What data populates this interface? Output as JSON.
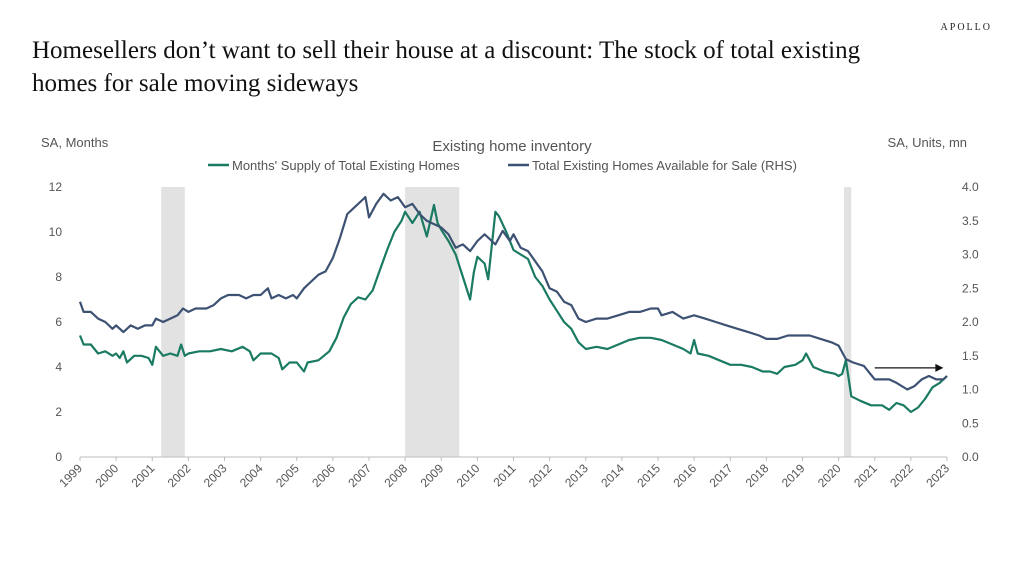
{
  "brand": "APOLLO",
  "headline": "Homesellers don’t want to sell their house at a discount: The stock of  total existing homes for sale moving sideways",
  "colors": {
    "supply": "#1a7a62",
    "inventory": "#3d5273",
    "recession": "#e2e2e2",
    "axis": "#bdbdbd"
  },
  "chart_data": {
    "type": "line",
    "title": "Existing home inventory",
    "ylabel_left": "SA, Months",
    "ylabel_right": "SA, Units, mn",
    "legend_position": "top",
    "grid": false,
    "xlim": [
      1999,
      2023
    ],
    "ylim_left": [
      0,
      12
    ],
    "ylim_right": [
      0,
      4
    ],
    "x_ticks": [
      "1999",
      "2000",
      "2001",
      "2002",
      "2003",
      "2004",
      "2005",
      "2006",
      "2007",
      "2008",
      "2009",
      "2010",
      "2011",
      "2012",
      "2013",
      "2014",
      "2015",
      "2016",
      "2017",
      "2018",
      "2019",
      "2020",
      "2021",
      "2022",
      "2023"
    ],
    "y_ticks_left": [
      "0",
      "2",
      "4",
      "6",
      "8",
      "10",
      "12"
    ],
    "y_ticks_right": [
      "0.0",
      "0.5",
      "1.0",
      "1.5",
      "2.0",
      "2.5",
      "3.0",
      "3.5",
      "4.0"
    ],
    "recessions": [
      [
        2001.25,
        2001.9
      ],
      [
        2008.0,
        2009.5
      ],
      [
        2020.15,
        2020.35
      ]
    ],
    "annotation": {
      "type": "arrow",
      "x": [
        2021.0,
        2022.9
      ],
      "y_right": 1.32
    },
    "series": [
      {
        "name": "Months' Supply of Total Existing Homes",
        "axis": "left",
        "points": [
          [
            1999.0,
            5.4
          ],
          [
            1999.1,
            5.0
          ],
          [
            1999.3,
            5.0
          ],
          [
            1999.5,
            4.6
          ],
          [
            1999.7,
            4.7
          ],
          [
            1999.9,
            4.5
          ],
          [
            2000.0,
            4.6
          ],
          [
            2000.1,
            4.4
          ],
          [
            2000.2,
            4.7
          ],
          [
            2000.3,
            4.2
          ],
          [
            2000.5,
            4.5
          ],
          [
            2000.7,
            4.5
          ],
          [
            2000.9,
            4.4
          ],
          [
            2001.0,
            4.1
          ],
          [
            2001.1,
            4.9
          ],
          [
            2001.3,
            4.5
          ],
          [
            2001.5,
            4.6
          ],
          [
            2001.7,
            4.5
          ],
          [
            2001.8,
            5.0
          ],
          [
            2001.9,
            4.5
          ],
          [
            2002.0,
            4.6
          ],
          [
            2002.3,
            4.7
          ],
          [
            2002.6,
            4.7
          ],
          [
            2002.9,
            4.8
          ],
          [
            2003.2,
            4.7
          ],
          [
            2003.5,
            4.9
          ],
          [
            2003.7,
            4.7
          ],
          [
            2003.8,
            4.3
          ],
          [
            2004.0,
            4.6
          ],
          [
            2004.3,
            4.6
          ],
          [
            2004.5,
            4.4
          ],
          [
            2004.6,
            3.9
          ],
          [
            2004.8,
            4.2
          ],
          [
            2005.0,
            4.2
          ],
          [
            2005.2,
            3.8
          ],
          [
            2005.3,
            4.2
          ],
          [
            2005.6,
            4.3
          ],
          [
            2005.9,
            4.7
          ],
          [
            2006.1,
            5.3
          ],
          [
            2006.3,
            6.2
          ],
          [
            2006.5,
            6.8
          ],
          [
            2006.7,
            7.1
          ],
          [
            2006.9,
            7.0
          ],
          [
            2007.1,
            7.4
          ],
          [
            2007.3,
            8.3
          ],
          [
            2007.5,
            9.2
          ],
          [
            2007.7,
            10.0
          ],
          [
            2007.9,
            10.5
          ],
          [
            2008.0,
            10.9
          ],
          [
            2008.2,
            10.4
          ],
          [
            2008.4,
            10.9
          ],
          [
            2008.6,
            9.8
          ],
          [
            2008.8,
            11.2
          ],
          [
            2008.9,
            10.4
          ],
          [
            2009.0,
            10.1
          ],
          [
            2009.2,
            9.6
          ],
          [
            2009.4,
            9.0
          ],
          [
            2009.6,
            8.0
          ],
          [
            2009.8,
            7.0
          ],
          [
            2009.9,
            8.2
          ],
          [
            2010.0,
            8.9
          ],
          [
            2010.2,
            8.6
          ],
          [
            2010.3,
            7.9
          ],
          [
            2010.5,
            10.9
          ],
          [
            2010.6,
            10.7
          ],
          [
            2010.8,
            10.0
          ],
          [
            2011.0,
            9.2
          ],
          [
            2011.2,
            9.0
          ],
          [
            2011.4,
            8.8
          ],
          [
            2011.6,
            8.0
          ],
          [
            2011.8,
            7.6
          ],
          [
            2012.0,
            7.0
          ],
          [
            2012.2,
            6.5
          ],
          [
            2012.4,
            6.0
          ],
          [
            2012.6,
            5.7
          ],
          [
            2012.8,
            5.1
          ],
          [
            2013.0,
            4.8
          ],
          [
            2013.3,
            4.9
          ],
          [
            2013.6,
            4.8
          ],
          [
            2013.9,
            5.0
          ],
          [
            2014.2,
            5.2
          ],
          [
            2014.5,
            5.3
          ],
          [
            2014.8,
            5.3
          ],
          [
            2015.1,
            5.2
          ],
          [
            2015.4,
            5.0
          ],
          [
            2015.7,
            4.8
          ],
          [
            2015.9,
            4.6
          ],
          [
            2016.0,
            5.2
          ],
          [
            2016.1,
            4.6
          ],
          [
            2016.4,
            4.5
          ],
          [
            2016.7,
            4.3
          ],
          [
            2017.0,
            4.1
          ],
          [
            2017.3,
            4.1
          ],
          [
            2017.6,
            4.0
          ],
          [
            2017.9,
            3.8
          ],
          [
            2018.1,
            3.8
          ],
          [
            2018.3,
            3.7
          ],
          [
            2018.5,
            4.0
          ],
          [
            2018.8,
            4.1
          ],
          [
            2019.0,
            4.3
          ],
          [
            2019.1,
            4.6
          ],
          [
            2019.3,
            4.0
          ],
          [
            2019.6,
            3.8
          ],
          [
            2019.9,
            3.7
          ],
          [
            2020.0,
            3.6
          ],
          [
            2020.1,
            3.7
          ],
          [
            2020.2,
            4.3
          ],
          [
            2020.35,
            2.7
          ],
          [
            2020.6,
            2.5
          ],
          [
            2020.9,
            2.3
          ],
          [
            2021.2,
            2.3
          ],
          [
            2021.4,
            2.1
          ],
          [
            2021.6,
            2.4
          ],
          [
            2021.8,
            2.3
          ],
          [
            2022.0,
            2.0
          ],
          [
            2022.2,
            2.2
          ],
          [
            2022.4,
            2.6
          ],
          [
            2022.6,
            3.1
          ],
          [
            2022.8,
            3.3
          ],
          [
            2023.0,
            3.6
          ]
        ]
      },
      {
        "name": "Total Existing Homes Available for Sale (RHS)",
        "axis": "right",
        "points": [
          [
            1999.0,
            2.3
          ],
          [
            1999.1,
            2.15
          ],
          [
            1999.3,
            2.15
          ],
          [
            1999.5,
            2.05
          ],
          [
            1999.7,
            2.0
          ],
          [
            1999.9,
            1.9
          ],
          [
            2000.0,
            1.95
          ],
          [
            2000.2,
            1.85
          ],
          [
            2000.4,
            1.95
          ],
          [
            2000.6,
            1.9
          ],
          [
            2000.8,
            1.95
          ],
          [
            2001.0,
            1.95
          ],
          [
            2001.1,
            2.05
          ],
          [
            2001.3,
            2.0
          ],
          [
            2001.5,
            2.05
          ],
          [
            2001.7,
            2.1
          ],
          [
            2001.85,
            2.2
          ],
          [
            2002.0,
            2.15
          ],
          [
            2002.2,
            2.2
          ],
          [
            2002.5,
            2.2
          ],
          [
            2002.7,
            2.25
          ],
          [
            2002.9,
            2.35
          ],
          [
            2003.1,
            2.4
          ],
          [
            2003.4,
            2.4
          ],
          [
            2003.6,
            2.35
          ],
          [
            2003.8,
            2.4
          ],
          [
            2004.0,
            2.4
          ],
          [
            2004.2,
            2.5
          ],
          [
            2004.3,
            2.35
          ],
          [
            2004.5,
            2.4
          ],
          [
            2004.7,
            2.35
          ],
          [
            2004.9,
            2.4
          ],
          [
            2005.0,
            2.35
          ],
          [
            2005.2,
            2.5
          ],
          [
            2005.4,
            2.6
          ],
          [
            2005.6,
            2.7
          ],
          [
            2005.8,
            2.75
          ],
          [
            2006.0,
            2.95
          ],
          [
            2006.2,
            3.25
          ],
          [
            2006.4,
            3.6
          ],
          [
            2006.6,
            3.7
          ],
          [
            2006.8,
            3.8
          ],
          [
            2006.9,
            3.85
          ],
          [
            2007.0,
            3.55
          ],
          [
            2007.2,
            3.75
          ],
          [
            2007.4,
            3.9
          ],
          [
            2007.6,
            3.8
          ],
          [
            2007.8,
            3.85
          ],
          [
            2008.0,
            3.7
          ],
          [
            2008.2,
            3.75
          ],
          [
            2008.4,
            3.6
          ],
          [
            2008.6,
            3.5
          ],
          [
            2008.8,
            3.45
          ],
          [
            2009.0,
            3.4
          ],
          [
            2009.2,
            3.3
          ],
          [
            2009.4,
            3.1
          ],
          [
            2009.6,
            3.15
          ],
          [
            2009.8,
            3.05
          ],
          [
            2010.0,
            3.2
          ],
          [
            2010.2,
            3.3
          ],
          [
            2010.4,
            3.2
          ],
          [
            2010.5,
            3.15
          ],
          [
            2010.7,
            3.35
          ],
          [
            2010.9,
            3.2
          ],
          [
            2011.0,
            3.3
          ],
          [
            2011.2,
            3.1
          ],
          [
            2011.4,
            3.05
          ],
          [
            2011.6,
            2.9
          ],
          [
            2011.8,
            2.75
          ],
          [
            2012.0,
            2.5
          ],
          [
            2012.2,
            2.45
          ],
          [
            2012.4,
            2.3
          ],
          [
            2012.6,
            2.25
          ],
          [
            2012.8,
            2.05
          ],
          [
            2013.0,
            2.0
          ],
          [
            2013.3,
            2.05
          ],
          [
            2013.6,
            2.05
          ],
          [
            2013.9,
            2.1
          ],
          [
            2014.2,
            2.15
          ],
          [
            2014.5,
            2.15
          ],
          [
            2014.8,
            2.2
          ],
          [
            2015.0,
            2.2
          ],
          [
            2015.1,
            2.1
          ],
          [
            2015.4,
            2.15
          ],
          [
            2015.7,
            2.05
          ],
          [
            2016.0,
            2.1
          ],
          [
            2016.3,
            2.05
          ],
          [
            2016.6,
            2.0
          ],
          [
            2016.9,
            1.95
          ],
          [
            2017.2,
            1.9
          ],
          [
            2017.5,
            1.85
          ],
          [
            2017.8,
            1.8
          ],
          [
            2018.0,
            1.75
          ],
          [
            2018.3,
            1.75
          ],
          [
            2018.6,
            1.8
          ],
          [
            2018.9,
            1.8
          ],
          [
            2019.2,
            1.8
          ],
          [
            2019.5,
            1.75
          ],
          [
            2019.8,
            1.7
          ],
          [
            2020.0,
            1.65
          ],
          [
            2020.2,
            1.45
          ],
          [
            2020.4,
            1.4
          ],
          [
            2020.7,
            1.35
          ],
          [
            2021.0,
            1.15
          ],
          [
            2021.2,
            1.15
          ],
          [
            2021.4,
            1.15
          ],
          [
            2021.6,
            1.1
          ],
          [
            2021.9,
            1.0
          ],
          [
            2022.1,
            1.05
          ],
          [
            2022.3,
            1.15
          ],
          [
            2022.5,
            1.2
          ],
          [
            2022.7,
            1.15
          ],
          [
            2022.9,
            1.15
          ],
          [
            2023.0,
            1.2
          ]
        ]
      }
    ]
  }
}
